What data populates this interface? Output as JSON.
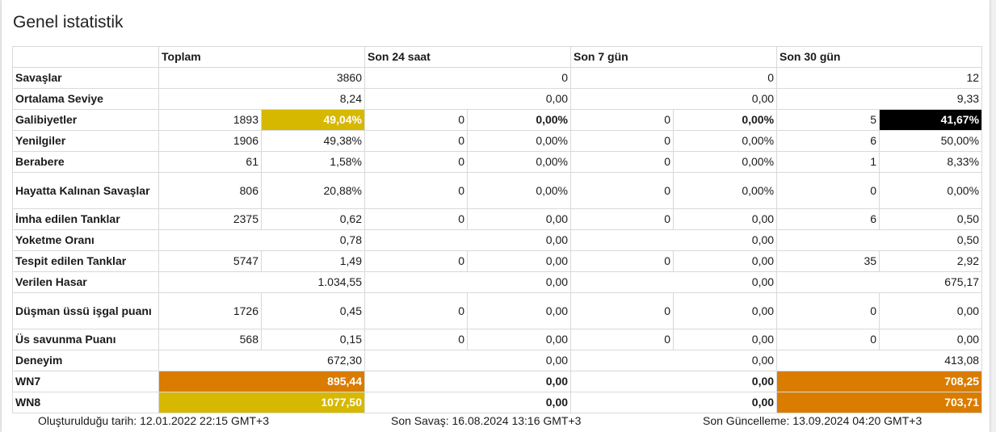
{
  "title": "Genel istatistik",
  "columns": {
    "label": "",
    "total": "Toplam",
    "d24": "Son 24 saat",
    "d7": "Son 7 gün",
    "d30": "Son 30 gün"
  },
  "rows": {
    "battles": {
      "label": "Savaşlar",
      "t": "3860",
      "d24": "0",
      "d7": "0",
      "d30": "12"
    },
    "avg_level": {
      "label": "Ortalama Seviye",
      "t": "8,24",
      "d24": "0,00",
      "d7": "0,00",
      "d30": "9,33"
    },
    "wins": {
      "label": "Galibiyetler",
      "t_n": "1893",
      "t_p": "49,04%",
      "d24_n": "0",
      "d24_p": "0,00%",
      "d7_n": "0",
      "d7_p": "0,00%",
      "d30_n": "5",
      "d30_p": "41,67%"
    },
    "losses": {
      "label": "Yenilgiler",
      "t_n": "1906",
      "t_p": "49,38%",
      "d24_n": "0",
      "d24_p": "0,00%",
      "d7_n": "0",
      "d7_p": "0,00%",
      "d30_n": "6",
      "d30_p": "50,00%"
    },
    "draws": {
      "label": "Berabere",
      "t_n": "61",
      "t_p": "1,58%",
      "d24_n": "0",
      "d24_p": "0,00%",
      "d7_n": "0",
      "d7_p": "0,00%",
      "d30_n": "1",
      "d30_p": "8,33%"
    },
    "survived": {
      "label": "Hayatta Kalınan Savaşlar",
      "t_n": "806",
      "t_p": "20,88%",
      "d24_n": "0",
      "d24_p": "0,00%",
      "d7_n": "0",
      "d7_p": "0,00%",
      "d30_n": "0",
      "d30_p": "0,00%"
    },
    "destroyed": {
      "label": "İmha edilen Tanklar",
      "t_n": "2375",
      "t_p": "0,62",
      "d24_n": "0",
      "d24_p": "0,00",
      "d7_n": "0",
      "d7_p": "0,00",
      "d30_n": "6",
      "d30_p": "0,50"
    },
    "kill_ratio": {
      "label": "Yoketme Oranı",
      "t": "0,78",
      "d24": "0,00",
      "d7": "0,00",
      "d30": "0,50"
    },
    "spotted": {
      "label": "Tespit edilen Tanklar",
      "t_n": "5747",
      "t_p": "1,49",
      "d24_n": "0",
      "d24_p": "0,00",
      "d7_n": "0",
      "d7_p": "0,00",
      "d30_n": "35",
      "d30_p": "2,92"
    },
    "damage": {
      "label": "Verilen Hasar",
      "t": "1.034,55",
      "d24": "0,00",
      "d7": "0,00",
      "d30": "675,17"
    },
    "capture": {
      "label": "Düşman üssü işgal puanı",
      "t_n": "1726",
      "t_p": "0,45",
      "d24_n": "0",
      "d24_p": "0,00",
      "d7_n": "0",
      "d7_p": "0,00",
      "d30_n": "0",
      "d30_p": "0,00"
    },
    "defense": {
      "label": "Üs savunma Puanı",
      "t_n": "568",
      "t_p": "0,15",
      "d24_n": "0",
      "d24_p": "0,00",
      "d7_n": "0",
      "d7_p": "0,00",
      "d30_n": "0",
      "d30_p": "0,00"
    },
    "xp": {
      "label": "Deneyim",
      "t": "672,30",
      "d24": "0,00",
      "d7": "0,00",
      "d30": "413,08"
    },
    "wn7": {
      "label": "WN7",
      "t": "895,44",
      "d24": "0,00",
      "d7": "0,00",
      "d30": "708,25"
    },
    "wn8": {
      "label": "WN8",
      "t": "1077,50",
      "d24": "0,00",
      "d7": "0,00",
      "d30": "703,71"
    }
  },
  "colors": {
    "good": "#d7b800",
    "average": "#d97c00",
    "elite": "#000000"
  },
  "footer": {
    "created": "Oluşturulduğu tarih: 12.01.2022 22:15 GMT+3",
    "last_battle": "Son Savaş: 16.08.2024 13:16 GMT+3",
    "last_update": "Son Güncelleme: 13.09.2024 04:20 GMT+3"
  }
}
